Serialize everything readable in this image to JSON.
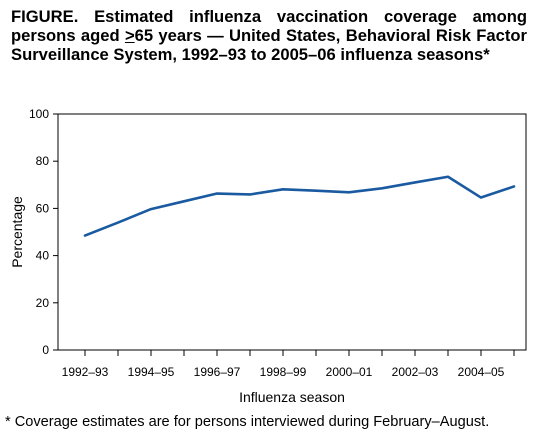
{
  "figure": {
    "title_lead": "FIGURE. Estimated influenza vaccination coverage among persons aged ",
    "title_ge": ">",
    "title_rest": "65 years — United States, Behavioral Risk Factor Surveillance System, 1992–93 to 2005–06 influenza seasons*",
    "footnote": "* Coverage estimates are for persons interviewed during February–August."
  },
  "chart_data": {
    "type": "line",
    "title": "",
    "xlabel": "Influenza season",
    "ylabel": "Percentage",
    "ylim": [
      0,
      100
    ],
    "yticks": [
      0,
      20,
      40,
      60,
      80,
      100
    ],
    "categories": [
      "1992–93",
      "1993–94",
      "1994–95",
      "1995–96",
      "1996–97",
      "1997–98",
      "1998–99",
      "1999–00",
      "2000–01",
      "2001–02",
      "2002–03",
      "2003–04",
      "2004–05",
      "2005–06"
    ],
    "xtick_labels": [
      "1992–93",
      "",
      "1994–95",
      "",
      "1996–97",
      "",
      "1998–99",
      "",
      "2000–01",
      "",
      "2002–03",
      "",
      "2004–05",
      ""
    ],
    "series": [
      {
        "values": [
          48.5,
          54.0,
          59.7,
          63.0,
          66.3,
          65.9,
          68.1,
          67.5,
          66.8,
          68.5,
          71.0,
          73.4,
          64.6,
          69.3
        ],
        "color": "#1a5aa0"
      }
    ],
    "grid": false,
    "legend": "none"
  }
}
